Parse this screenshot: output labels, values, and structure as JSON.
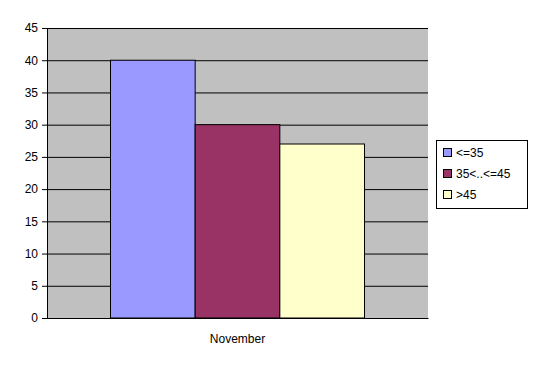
{
  "chart_data": {
    "type": "bar",
    "categories": [
      "November"
    ],
    "series": [
      {
        "name": "<=35",
        "color": "#9999ff",
        "values": [
          40
        ]
      },
      {
        "name": "35<..<=45",
        "color": "#993366",
        "values": [
          30
        ]
      },
      {
        "name": ">45",
        "color": "#ffffcc",
        "values": [
          27
        ]
      }
    ],
    "ylim": [
      0,
      45
    ],
    "yticks": [
      0,
      5,
      10,
      15,
      20,
      25,
      30,
      35,
      40,
      45
    ],
    "grid": true,
    "legend": "right"
  }
}
